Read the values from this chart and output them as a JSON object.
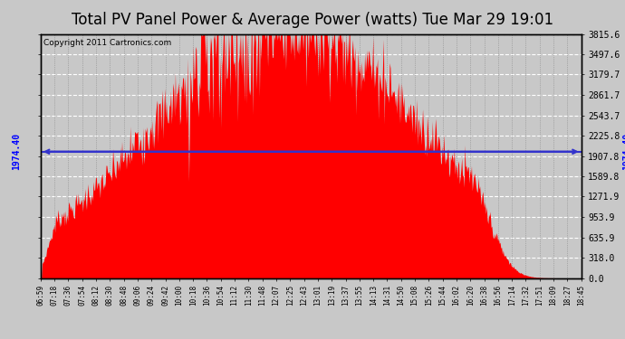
{
  "title": "Total PV Panel Power & Average Power (watts) Tue Mar 29 19:01",
  "copyright": "Copyright 2011 Cartronics.com",
  "avg_value": 1974.4,
  "ymax": 3815.6,
  "yticks": [
    0.0,
    318.0,
    635.9,
    953.9,
    1271.9,
    1589.8,
    1907.8,
    2225.8,
    2543.7,
    2861.7,
    3179.7,
    3497.6,
    3815.6
  ],
  "fill_color": "#FF0000",
  "line_color": "#3333CC",
  "bg_color": "#C8C8C8",
  "plot_bg": "#C8C8C8",
  "grid_color": "#FFFFFF",
  "grid_color_x": "#888888",
  "title_fontsize": 12,
  "copyright_fontsize": 6.5,
  "tick_fontsize": 7,
  "x_labels": [
    "06:59",
    "07:18",
    "07:36",
    "07:54",
    "08:12",
    "08:30",
    "08:48",
    "09:06",
    "09:24",
    "09:42",
    "10:00",
    "10:18",
    "10:36",
    "10:54",
    "11:12",
    "11:30",
    "11:48",
    "12:07",
    "12:25",
    "12:43",
    "13:01",
    "13:19",
    "13:37",
    "13:55",
    "14:13",
    "14:31",
    "14:50",
    "15:08",
    "15:26",
    "15:44",
    "16:02",
    "16:20",
    "16:38",
    "16:56",
    "17:14",
    "17:32",
    "17:51",
    "18:09",
    "18:27",
    "18:45"
  ]
}
